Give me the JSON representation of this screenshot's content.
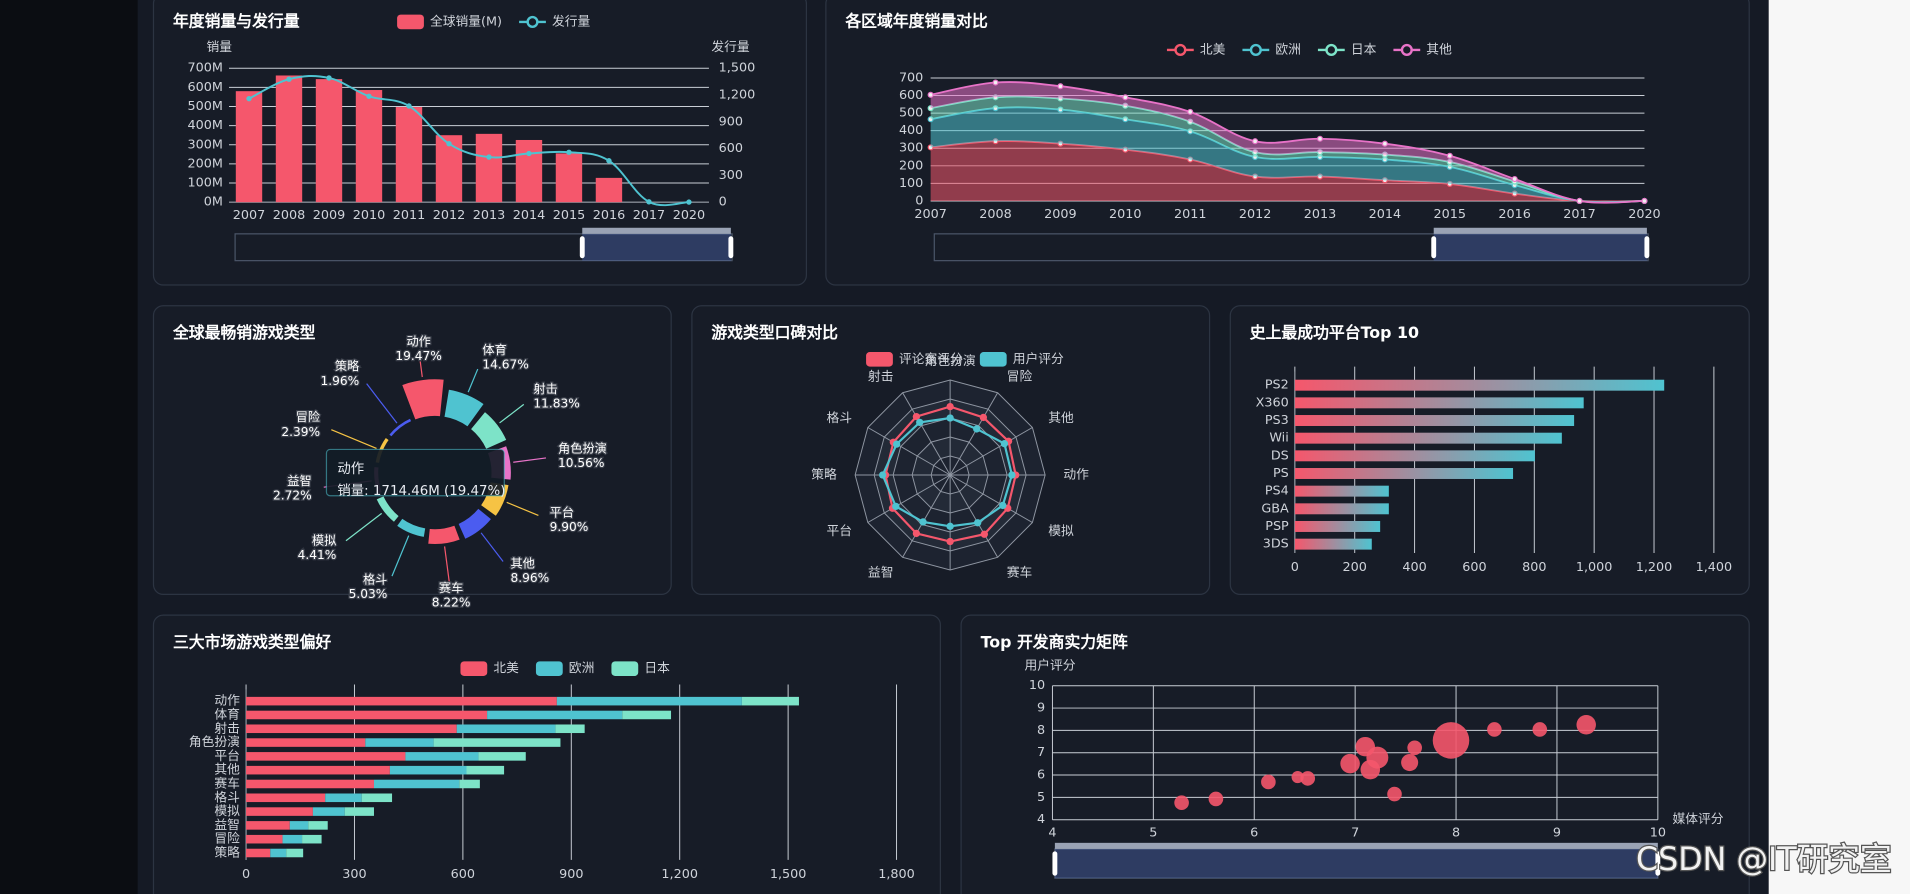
{
  "chart_data": [
    {
      "type": "bar",
      "title": "年度销量与发行量",
      "y_label": "销量",
      "y2_label": "发行量",
      "legend": "top",
      "categories": [
        "2007",
        "2008",
        "2009",
        "2010",
        "2011",
        "2012",
        "2013",
        "2014",
        "2015",
        "2016",
        "2017",
        "2020"
      ],
      "series": [
        {
          "name": "全球销量(M)",
          "color": "#f5576c",
          "values": [
            580,
            662,
            643,
            586,
            497,
            350,
            357,
            325,
            255,
            127,
            0,
            0
          ]
        },
        {
          "name": "发行量",
          "type": "line",
          "axis": "y2",
          "color": "#4fc3d0",
          "values": [
            1159,
            1377,
            1391,
            1186,
            1077,
            655,
            505,
            545,
            559,
            464,
            4,
            1
          ]
        }
      ],
      "ylim": [
        0,
        700
      ],
      "yticks": [
        {
          "value": 0,
          "label": "0M"
        },
        {
          "value": 100,
          "label": "100M"
        },
        {
          "value": 200,
          "label": "200M"
        },
        {
          "value": 300,
          "label": "300M"
        },
        {
          "value": 400,
          "label": "400M"
        },
        {
          "value": 500,
          "label": "500M"
        },
        {
          "value": 600,
          "label": "600M"
        },
        {
          "value": 700,
          "label": "700M"
        }
      ],
      "y2lim": [
        0,
        1500
      ],
      "y2ticks": [
        0,
        300,
        600,
        900,
        {
          "value": 1200,
          "label": "1,200"
        },
        {
          "value": 1500,
          "label": "1,500"
        }
      ],
      "grid": true
    },
    {
      "type": "area",
      "stacked": true,
      "title": "各区域年度销量对比",
      "legend": "top",
      "categories": [
        "2007",
        "2008",
        "2009",
        "2010",
        "2011",
        "2012",
        "2013",
        "2014",
        "2015",
        "2016",
        "2017",
        "2020"
      ],
      "series": [
        {
          "name": "北美",
          "color": "#f5576c",
          "values": [
            305,
            340,
            326,
            292,
            236,
            139,
            139,
            118,
            97,
            42,
            0,
            0
          ]
        },
        {
          "name": "欧洲",
          "color": "#4fc3d0",
          "values": [
            160,
            188,
            194,
            173,
            160,
            111,
            111,
            118,
            97,
            48,
            0,
            0
          ]
        },
        {
          "name": "日本",
          "color": "#7de3c8",
          "values": [
            63,
            62,
            63,
            77,
            55,
            28,
            28,
            28,
            28,
            21,
            0,
            0
          ]
        },
        {
          "name": "其他",
          "color": "#e873c8",
          "values": [
            76,
            84,
            70,
            48,
            56,
            62,
            76,
            62,
            35,
            14,
            0,
            0
          ]
        }
      ],
      "ylim": [
        0,
        700
      ],
      "yticks": [
        0,
        100,
        200,
        300,
        400,
        500,
        600,
        700
      ],
      "grid": true
    },
    {
      "type": "pie",
      "rose": true,
      "title": "全球最畅销游戏类型",
      "categories": [
        "动作",
        "体育",
        "射击",
        "角色扮演",
        "平台",
        "其他",
        "赛车",
        "格斗",
        "模拟",
        "益智",
        "冒险",
        "策略"
      ],
      "values": [
        19.47,
        14.67,
        11.83,
        10.56,
        9.9,
        8.96,
        8.22,
        5.03,
        4.41,
        2.72,
        2.39,
        1.96
      ],
      "value_labels": [
        "19.47%",
        "14.67%",
        "11.83%",
        "10.56%",
        "9.90%",
        "8.96%",
        "8.22%",
        "5.03%",
        "4.41%",
        "2.72%",
        "2.39%",
        "1.96%"
      ],
      "colors": [
        "#f5576c",
        "#4fc3d0",
        "#7de3c8",
        "#e873c8",
        "#f6c344",
        "#4b5cf0",
        "#f5576c",
        "#4fc3d0",
        "#7de3c8",
        "#e873c8",
        "#f6c344",
        "#4b5cf0"
      ],
      "tooltip": {
        "title": "动作",
        "text": "销量: 1714.46M (19.47%)"
      }
    },
    {
      "type": "radar",
      "title": "游戏类型口碑对比",
      "legend": "top",
      "categories": [
        "角色扮演",
        "冒险",
        "其他",
        "动作",
        "模拟",
        "赛车",
        null,
        "益智",
        "平台",
        "策略",
        "格斗",
        "射击"
      ],
      "max": 10,
      "series": [
        {
          "name": "评论家评分",
          "color": "#f5576c",
          "values": [
            7.2,
            7.0,
            7.1,
            6.9,
            7.0,
            7.2,
            7.0,
            7.1,
            7.0,
            6.8,
            6.9,
            7.1
          ]
        },
        {
          "name": "用户评分",
          "color": "#4fc3d0",
          "values": [
            6.0,
            5.6,
            6.6,
            6.5,
            6.4,
            5.8,
            5.4,
            5.7,
            6.6,
            7.1,
            6.5,
            6.4
          ]
        }
      ]
    },
    {
      "type": "bar",
      "orientation": "horizontal",
      "title": "史上最成功平台Top 10",
      "categories": [
        "PS2",
        "X360",
        "PS3",
        "Wii",
        "DS",
        "PS",
        "PS4",
        "GBA",
        "PSP",
        "3DS"
      ],
      "values": [
        1234,
        965,
        933,
        892,
        802,
        729,
        314,
        314,
        285,
        257
      ],
      "gradient": [
        "#f5576c",
        "#4fc3d0"
      ],
      "xlim": [
        0,
        1400
      ],
      "xticks": [
        0,
        200,
        400,
        600,
        800,
        {
          "value": 1000,
          "label": "1,000"
        },
        {
          "value": 1200,
          "label": "1,200"
        },
        {
          "value": 1400,
          "label": "1,400"
        }
      ],
      "grid": true
    },
    {
      "type": "bar",
      "orientation": "horizontal",
      "stacked": true,
      "title": "三大市场游戏类型偏好",
      "legend": "top",
      "categories": [
        "动作",
        "体育",
        "射击",
        "角色扮演",
        "平台",
        "其他",
        "赛车",
        "格斗",
        "模拟",
        "益智",
        "冒险",
        "策略"
      ],
      "series": [
        {
          "name": "北美",
          "color": "#f5576c",
          "values": [
            860,
            667,
            583,
            330,
            441,
            398,
            354,
            219,
            185,
            121,
            101,
            67
          ]
        },
        {
          "name": "欧洲",
          "color": "#4fc3d0",
          "values": [
            512,
            374,
            273,
            189,
            202,
            212,
            236,
            101,
            88,
            51,
            54,
            44
          ]
        },
        {
          "name": "日本",
          "color": "#7de3c8",
          "values": [
            158,
            135,
            81,
            351,
            131,
            104,
            57,
            84,
            81,
            54,
            54,
            47
          ]
        }
      ],
      "xlim": [
        0,
        1800
      ],
      "xticks": [
        0,
        300,
        600,
        900,
        {
          "value": 1200,
          "label": "1,200"
        },
        {
          "value": 1500,
          "label": "1,500"
        },
        {
          "value": 1800,
          "label": "1,800"
        }
      ],
      "grid": true
    },
    {
      "type": "scatter",
      "title": "Top 开发商实力矩阵",
      "x_label": "媒体评分",
      "y_label": "用户评分",
      "x": [
        5.28,
        5.62,
        6.14,
        6.43,
        6.53,
        6.95,
        7.1,
        7.15,
        7.22,
        7.39,
        7.54,
        7.59,
        7.95,
        8.38,
        8.83,
        9.29
      ],
      "y": [
        4.76,
        4.93,
        5.69,
        5.91,
        5.85,
        6.51,
        7.27,
        6.24,
        6.78,
        5.15,
        6.56,
        7.22,
        7.55,
        8.04,
        8.04,
        8.25
      ],
      "sizes": [
        36,
        36,
        36,
        25,
        36,
        64,
        64,
        64,
        81,
        36,
        49,
        36,
        225,
        36,
        36,
        64
      ],
      "color": "#f5576c",
      "xlim": [
        4,
        10
      ],
      "xticks": [
        4,
        5,
        6,
        7,
        8,
        9,
        10
      ],
      "ylim": [
        4,
        10
      ],
      "yticks": [
        4,
        5,
        6,
        7,
        8,
        9,
        10
      ],
      "grid": true
    }
  ],
  "watermark": "CSDN @IT研究室"
}
